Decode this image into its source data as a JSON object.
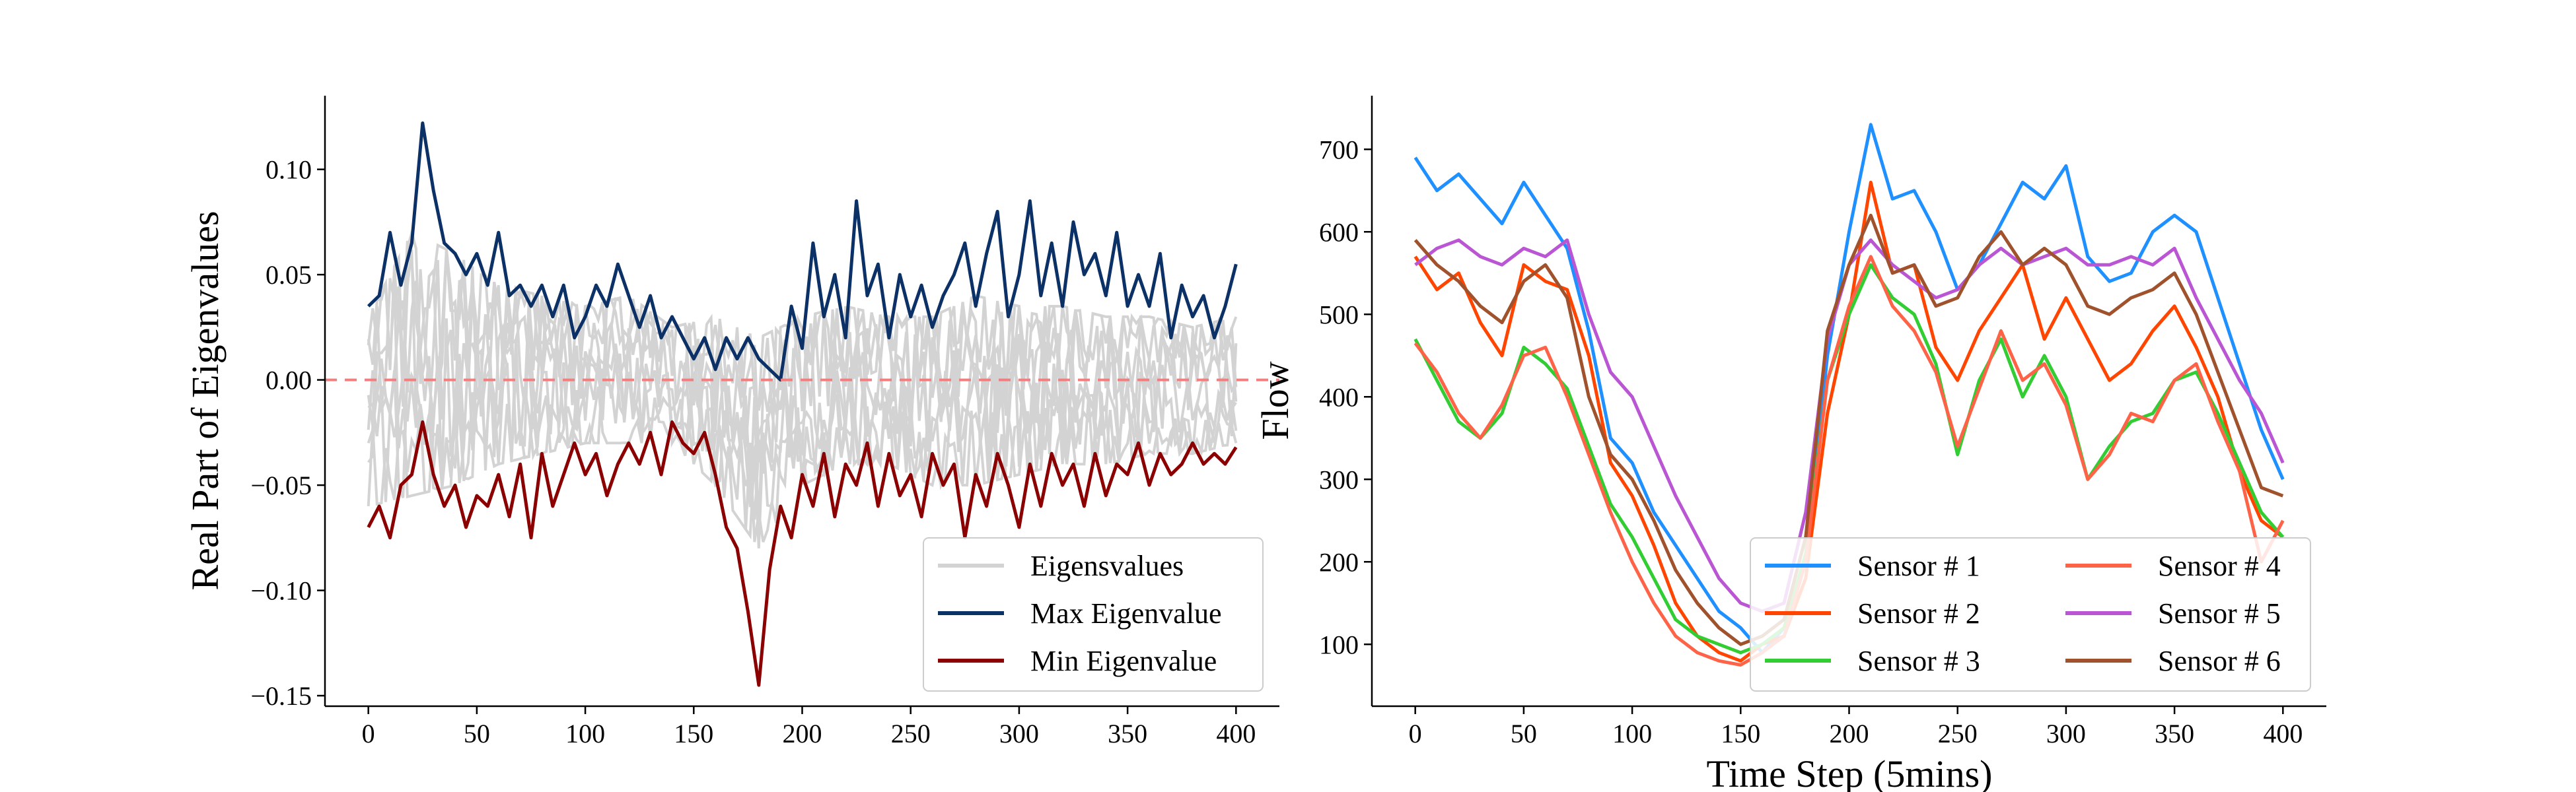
{
  "figure": {
    "background": "#ffffff"
  },
  "chart_data": [
    {
      "type": "line",
      "title": "",
      "xlabel": "",
      "ylabel": "Real Part of Eigenvalues",
      "xlim": [
        -20,
        420
      ],
      "ylim": [
        -0.155,
        0.135
      ],
      "x_ticks": [
        0,
        50,
        100,
        150,
        200,
        250,
        300,
        350,
        400
      ],
      "x_tick_labels": [
        "0",
        "50",
        "100",
        "150",
        "200",
        "250",
        "300",
        "350",
        "400"
      ],
      "y_ticks": [
        -0.15,
        -0.1,
        -0.05,
        0.0,
        0.05,
        0.1
      ],
      "y_tick_labels": [
        "−0.15",
        "−0.10",
        "−0.05",
        "0.00",
        "0.05",
        "0.10"
      ],
      "grid": false,
      "reference_line": {
        "y": 0.0,
        "style": "dashed",
        "color": "#f08080"
      },
      "legend_position": "lower-right",
      "legend_columns": 1,
      "series": [
        {
          "name": "Eigensvalues",
          "color": "#d3d3d3",
          "kind": "band",
          "x": [
            0,
            20,
            40,
            60,
            80,
            100,
            120,
            140,
            160,
            180,
            200,
            220,
            240,
            260,
            280,
            300,
            320,
            340,
            360,
            380,
            400
          ],
          "upper": [
            0.03,
            0.07,
            0.06,
            0.045,
            0.04,
            0.035,
            0.04,
            0.025,
            0.03,
            0.02,
            0.03,
            0.035,
            0.03,
            0.03,
            0.04,
            0.035,
            0.035,
            0.03,
            0.03,
            0.025,
            0.03
          ],
          "lower": [
            -0.06,
            -0.055,
            -0.05,
            -0.04,
            -0.035,
            -0.03,
            -0.03,
            -0.03,
            -0.05,
            -0.08,
            -0.05,
            -0.04,
            -0.04,
            -0.05,
            -0.05,
            -0.045,
            -0.04,
            -0.04,
            -0.035,
            -0.035,
            -0.03
          ]
        },
        {
          "name": "Max Eigenvalue",
          "color": "#0b3167",
          "x": [
            0,
            5,
            10,
            15,
            20,
            25,
            30,
            35,
            40,
            45,
            50,
            55,
            60,
            65,
            70,
            75,
            80,
            85,
            90,
            95,
            100,
            105,
            110,
            115,
            120,
            125,
            130,
            135,
            140,
            145,
            150,
            155,
            160,
            165,
            170,
            175,
            180,
            185,
            190,
            195,
            200,
            205,
            210,
            215,
            220,
            225,
            230,
            235,
            240,
            245,
            250,
            255,
            260,
            265,
            270,
            275,
            280,
            285,
            290,
            295,
            300,
            305,
            310,
            315,
            320,
            325,
            330,
            335,
            340,
            345,
            350,
            355,
            360,
            365,
            370,
            375,
            380,
            385,
            390,
            395,
            400
          ],
          "y": [
            0.035,
            0.04,
            0.07,
            0.045,
            0.065,
            0.122,
            0.09,
            0.065,
            0.06,
            0.05,
            0.06,
            0.045,
            0.07,
            0.04,
            0.045,
            0.035,
            0.045,
            0.03,
            0.045,
            0.02,
            0.03,
            0.045,
            0.035,
            0.055,
            0.04,
            0.025,
            0.04,
            0.02,
            0.03,
            0.02,
            0.01,
            0.02,
            0.005,
            0.02,
            0.01,
            0.02,
            0.01,
            0.005,
            0.0,
            0.035,
            0.015,
            0.065,
            0.03,
            0.05,
            0.02,
            0.085,
            0.04,
            0.055,
            0.02,
            0.05,
            0.03,
            0.045,
            0.025,
            0.04,
            0.05,
            0.065,
            0.035,
            0.06,
            0.08,
            0.03,
            0.05,
            0.085,
            0.04,
            0.065,
            0.035,
            0.075,
            0.05,
            0.06,
            0.04,
            0.07,
            0.035,
            0.05,
            0.035,
            0.06,
            0.02,
            0.045,
            0.03,
            0.04,
            0.02,
            0.035,
            0.055
          ]
        },
        {
          "name": "Min Eigenvalue",
          "color": "#8b0000",
          "x": [
            0,
            5,
            10,
            15,
            20,
            25,
            30,
            35,
            40,
            45,
            50,
            55,
            60,
            65,
            70,
            75,
            80,
            85,
            90,
            95,
            100,
            105,
            110,
            115,
            120,
            125,
            130,
            135,
            140,
            145,
            150,
            155,
            160,
            165,
            170,
            175,
            180,
            185,
            190,
            195,
            200,
            205,
            210,
            215,
            220,
            225,
            230,
            235,
            240,
            245,
            250,
            255,
            260,
            265,
            270,
            275,
            280,
            285,
            290,
            295,
            300,
            305,
            310,
            315,
            320,
            325,
            330,
            335,
            340,
            345,
            350,
            355,
            360,
            365,
            370,
            375,
            380,
            385,
            390,
            395,
            400
          ],
          "y": [
            -0.07,
            -0.06,
            -0.075,
            -0.05,
            -0.045,
            -0.02,
            -0.045,
            -0.06,
            -0.05,
            -0.07,
            -0.055,
            -0.06,
            -0.045,
            -0.065,
            -0.04,
            -0.075,
            -0.035,
            -0.06,
            -0.045,
            -0.03,
            -0.045,
            -0.035,
            -0.055,
            -0.04,
            -0.03,
            -0.04,
            -0.025,
            -0.045,
            -0.02,
            -0.03,
            -0.035,
            -0.025,
            -0.045,
            -0.07,
            -0.08,
            -0.11,
            -0.145,
            -0.09,
            -0.06,
            -0.075,
            -0.045,
            -0.06,
            -0.035,
            -0.065,
            -0.04,
            -0.05,
            -0.03,
            -0.06,
            -0.035,
            -0.055,
            -0.045,
            -0.065,
            -0.035,
            -0.05,
            -0.04,
            -0.075,
            -0.045,
            -0.06,
            -0.035,
            -0.05,
            -0.07,
            -0.04,
            -0.06,
            -0.035,
            -0.05,
            -0.04,
            -0.06,
            -0.035,
            -0.055,
            -0.04,
            -0.045,
            -0.03,
            -0.05,
            -0.035,
            -0.045,
            -0.04,
            -0.03,
            -0.04,
            -0.035,
            -0.04,
            -0.032
          ]
        }
      ]
    },
    {
      "type": "line",
      "title": "",
      "xlabel": "Time Step (5mins)",
      "ylabel": "Flow",
      "xlim": [
        -20,
        420
      ],
      "ylim": [
        25,
        765
      ],
      "x_ticks": [
        0,
        50,
        100,
        150,
        200,
        250,
        300,
        350,
        400
      ],
      "x_tick_labels": [
        "0",
        "50",
        "100",
        "150",
        "200",
        "250",
        "300",
        "350",
        "400"
      ],
      "y_ticks": [
        100,
        200,
        300,
        400,
        500,
        600,
        700
      ],
      "y_tick_labels": [
        "100",
        "200",
        "300",
        "400",
        "500",
        "600",
        "700"
      ],
      "grid": false,
      "legend_position": "lower-right",
      "legend_columns": 2,
      "series": [
        {
          "name": "Sensor # 1",
          "color": "#1e90ff",
          "x": [
            0,
            10,
            20,
            30,
            40,
            50,
            60,
            70,
            80,
            90,
            100,
            110,
            120,
            130,
            140,
            150,
            160,
            170,
            180,
            190,
            200,
            210,
            220,
            230,
            240,
            250,
            260,
            270,
            280,
            290,
            300,
            310,
            320,
            330,
            340,
            350,
            360,
            370,
            380,
            390,
            400
          ],
          "y": [
            690,
            650,
            670,
            640,
            610,
            660,
            620,
            580,
            480,
            350,
            320,
            260,
            220,
            180,
            140,
            120,
            90,
            120,
            200,
            450,
            600,
            730,
            640,
            650,
            600,
            530,
            560,
            610,
            660,
            640,
            680,
            570,
            540,
            550,
            600,
            620,
            600,
            520,
            440,
            360,
            300
          ]
        },
        {
          "name": "Sensor # 2",
          "color": "#ff4500",
          "x": [
            0,
            10,
            20,
            30,
            40,
            50,
            60,
            70,
            80,
            90,
            100,
            110,
            120,
            130,
            140,
            150,
            160,
            170,
            180,
            190,
            200,
            210,
            220,
            230,
            240,
            250,
            260,
            270,
            280,
            290,
            300,
            310,
            320,
            330,
            340,
            350,
            360,
            370,
            380,
            390,
            400
          ],
          "y": [
            570,
            530,
            550,
            490,
            450,
            560,
            540,
            530,
            450,
            320,
            280,
            220,
            150,
            110,
            90,
            80,
            100,
            110,
            180,
            380,
            500,
            660,
            550,
            560,
            460,
            420,
            480,
            520,
            560,
            470,
            520,
            470,
            420,
            440,
            480,
            510,
            460,
            400,
            310,
            250,
            230
          ]
        },
        {
          "name": "Sensor # 3",
          "color": "#32cd32",
          "x": [
            0,
            10,
            20,
            30,
            40,
            50,
            60,
            70,
            80,
            90,
            100,
            110,
            120,
            130,
            140,
            150,
            160,
            170,
            180,
            190,
            200,
            210,
            220,
            230,
            240,
            250,
            260,
            270,
            280,
            290,
            300,
            310,
            320,
            330,
            340,
            350,
            360,
            370,
            380,
            390,
            400
          ],
          "y": [
            470,
            420,
            370,
            350,
            380,
            460,
            440,
            410,
            340,
            270,
            230,
            180,
            130,
            110,
            100,
            90,
            100,
            120,
            210,
            420,
            500,
            560,
            520,
            500,
            440,
            330,
            420,
            470,
            400,
            450,
            400,
            300,
            340,
            370,
            380,
            420,
            430,
            380,
            320,
            260,
            230
          ]
        },
        {
          "name": "Sensor # 4",
          "color": "#ff6347",
          "x": [
            0,
            10,
            20,
            30,
            40,
            50,
            60,
            70,
            80,
            90,
            100,
            110,
            120,
            130,
            140,
            150,
            160,
            170,
            180,
            190,
            200,
            210,
            220,
            230,
            240,
            250,
            260,
            270,
            280,
            290,
            300,
            310,
            320,
            330,
            340,
            350,
            360,
            370,
            380,
            390,
            400
          ],
          "y": [
            465,
            430,
            380,
            350,
            390,
            450,
            460,
            400,
            330,
            260,
            200,
            150,
            110,
            90,
            80,
            75,
            90,
            110,
            200,
            420,
            510,
            570,
            510,
            480,
            430,
            340,
            410,
            480,
            420,
            440,
            390,
            300,
            330,
            380,
            370,
            420,
            440,
            370,
            310,
            200,
            250
          ]
        },
        {
          "name": "Sensor # 5",
          "color": "#ba55d3",
          "x": [
            0,
            10,
            20,
            30,
            40,
            50,
            60,
            70,
            80,
            90,
            100,
            110,
            120,
            130,
            140,
            150,
            160,
            170,
            180,
            190,
            200,
            210,
            220,
            230,
            240,
            250,
            260,
            270,
            280,
            290,
            300,
            310,
            320,
            330,
            340,
            350,
            360,
            370,
            380,
            390,
            400
          ],
          "y": [
            560,
            580,
            590,
            570,
            560,
            580,
            570,
            590,
            500,
            430,
            400,
            340,
            280,
            230,
            180,
            150,
            140,
            150,
            260,
            470,
            560,
            590,
            560,
            540,
            520,
            530,
            560,
            580,
            560,
            570,
            580,
            560,
            560,
            570,
            560,
            580,
            520,
            470,
            420,
            380,
            320
          ]
        },
        {
          "name": "Sensor # 6",
          "color": "#a0522d",
          "x": [
            0,
            10,
            20,
            30,
            40,
            50,
            60,
            70,
            80,
            90,
            100,
            110,
            120,
            130,
            140,
            150,
            160,
            170,
            180,
            190,
            200,
            210,
            220,
            230,
            240,
            250,
            260,
            270,
            280,
            290,
            300,
            310,
            320,
            330,
            340,
            350,
            360,
            370,
            380,
            390,
            400
          ],
          "y": [
            590,
            560,
            540,
            510,
            490,
            540,
            560,
            520,
            400,
            330,
            300,
            250,
            190,
            150,
            120,
            100,
            110,
            130,
            230,
            480,
            560,
            620,
            550,
            560,
            510,
            520,
            570,
            600,
            560,
            580,
            560,
            510,
            500,
            520,
            530,
            550,
            500,
            430,
            360,
            290,
            280
          ]
        }
      ]
    }
  ]
}
